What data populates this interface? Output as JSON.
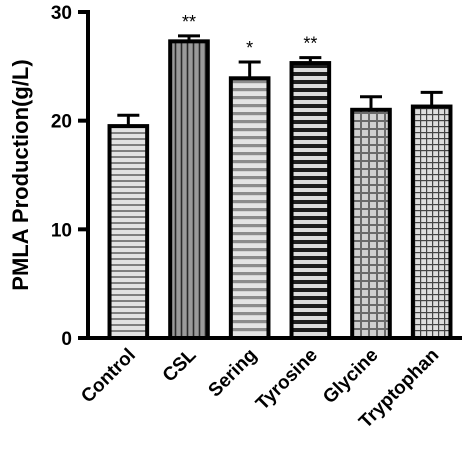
{
  "chart_data": {
    "type": "bar",
    "ylabel": "PMLA Production(g/L)",
    "xlabel": "",
    "ylim": [
      0,
      30
    ],
    "yticks": [
      0,
      10,
      20,
      30
    ],
    "categories": [
      "Control",
      "CSL",
      "Sering",
      "Tyrosine",
      "Glycine",
      "Tryptophan"
    ],
    "values": [
      19.5,
      27.3,
      23.9,
      25.3,
      21.0,
      21.3
    ],
    "errors": [
      1.0,
      0.5,
      1.5,
      0.5,
      1.2,
      1.3
    ],
    "significance": [
      "",
      "**",
      "*",
      "**",
      "",
      ""
    ],
    "patterns": [
      "horizontal-fine",
      "vertical",
      "horizontal-wide",
      "horizontal-bold",
      "grid-wide",
      "grid-fine"
    ],
    "colors": {
      "bar_fill": "#d6d6d6",
      "hatch": "#1a1a1a",
      "axis": "#000000"
    },
    "grid": false,
    "legend": "none"
  }
}
